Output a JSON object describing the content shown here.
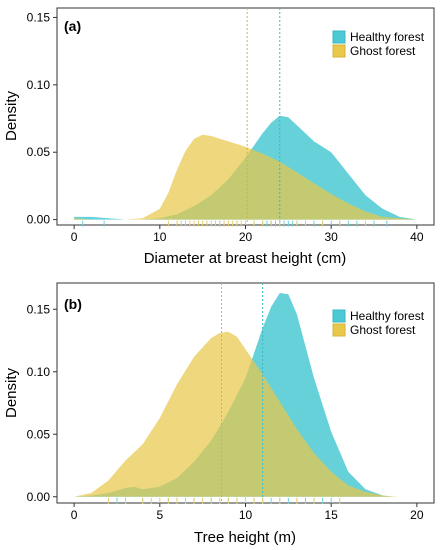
{
  "colors": {
    "healthy_fill": "#4cc9d4",
    "ghost_fill": "#e8c84a",
    "overlap_fill": "#a6c66a",
    "healthy_line": "#3ab8c4",
    "ghost_line": "#d6b43a",
    "rug_healthy": "#6fd2da",
    "rug_ghost": "#e6cf6e"
  },
  "chart_data": [
    {
      "type": "area",
      "panel_label": "(a)",
      "xlabel": "Diameter at breast height (cm)",
      "ylabel": "Density",
      "xlim": [
        -2,
        42
      ],
      "ylim": [
        -0.004,
        0.157
      ],
      "xticks": [
        0,
        10,
        20,
        30,
        40
      ],
      "yticks": [
        0.0,
        0.05,
        0.1,
        0.15
      ],
      "ytick_labels": [
        "0.00",
        "0.05",
        "0.10",
        "0.15"
      ],
      "grid": false,
      "legend_position": "top-right",
      "legend": [
        "Healthy forest",
        "Ghost forest"
      ],
      "series": [
        {
          "name": "Healthy forest",
          "x": [
            0,
            2,
            4,
            6,
            8,
            10,
            12,
            14,
            16,
            18,
            20,
            22,
            23,
            24,
            25,
            26,
            28,
            30,
            32,
            34,
            36,
            38,
            40
          ],
          "y": [
            0.002,
            0.002,
            0.001,
            0.0,
            0.0,
            0.001,
            0.004,
            0.01,
            0.018,
            0.03,
            0.046,
            0.064,
            0.072,
            0.077,
            0.076,
            0.07,
            0.058,
            0.05,
            0.034,
            0.018,
            0.008,
            0.002,
            0.0
          ],
          "mean": 24
        },
        {
          "name": "Ghost forest",
          "x": [
            0,
            2,
            4,
            6,
            8,
            10,
            11,
            12,
            13,
            14,
            15,
            16,
            17,
            18,
            20,
            22,
            24,
            26,
            28,
            30,
            32,
            34,
            36,
            38,
            40
          ],
          "y": [
            0.001,
            0.0,
            0.0,
            0.0,
            0.001,
            0.008,
            0.02,
            0.037,
            0.051,
            0.06,
            0.063,
            0.062,
            0.06,
            0.058,
            0.054,
            0.049,
            0.043,
            0.035,
            0.027,
            0.019,
            0.012,
            0.006,
            0.002,
            0.001,
            0.0
          ],
          "mean": 20.2
        }
      ],
      "rug": {
        "Healthy forest": [
          1,
          3.5,
          17,
          19,
          21,
          22,
          22.5,
          23,
          23.5,
          24,
          24.5,
          25,
          25.5,
          26,
          27,
          28,
          29,
          30,
          31,
          32,
          33,
          35,
          36.5
        ],
        "Ghost forest": [
          11,
          12,
          12.5,
          13,
          13.5,
          14,
          14.5,
          15,
          15.5,
          16,
          16.5,
          17,
          17.5,
          18,
          18.5,
          19,
          19.5,
          20,
          21,
          22,
          23,
          24,
          26,
          27,
          29,
          31,
          34
        ]
      }
    },
    {
      "type": "area",
      "panel_label": "(b)",
      "xlabel": "Tree height (m)",
      "ylabel": "Density",
      "xlim": [
        -1,
        21
      ],
      "ylim": [
        -0.005,
        0.171
      ],
      "xticks": [
        0,
        5,
        10,
        15,
        20
      ],
      "yticks": [
        0.0,
        0.05,
        0.1,
        0.15
      ],
      "ytick_labels": [
        "0.00",
        "0.05",
        "0.10",
        "0.15"
      ],
      "grid": false,
      "legend_position": "top-right",
      "legend": [
        "Healthy forest",
        "Ghost forest"
      ],
      "series": [
        {
          "name": "Healthy forest",
          "x": [
            0,
            1,
            2,
            2.5,
            3,
            3.5,
            4,
            5,
            6,
            7,
            8,
            9,
            10,
            10.5,
            11,
            11.5,
            12,
            12.5,
            13,
            14,
            15,
            16,
            17,
            18,
            18.5
          ],
          "y": [
            0.0,
            0.001,
            0.003,
            0.005,
            0.007,
            0.008,
            0.006,
            0.008,
            0.015,
            0.028,
            0.045,
            0.068,
            0.095,
            0.115,
            0.135,
            0.152,
            0.163,
            0.162,
            0.146,
            0.095,
            0.052,
            0.02,
            0.006,
            0.001,
            0.0
          ],
          "mean": 11
        },
        {
          "name": "Ghost forest",
          "x": [
            0,
            1,
            2,
            3,
            4,
            5,
            6,
            7,
            8,
            8.5,
            9,
            9.5,
            10,
            11,
            12,
            13,
            14,
            15,
            16,
            17,
            18,
            19,
            20
          ],
          "y": [
            0.0,
            0.003,
            0.013,
            0.029,
            0.042,
            0.063,
            0.09,
            0.112,
            0.127,
            0.131,
            0.132,
            0.128,
            0.118,
            0.098,
            0.076,
            0.054,
            0.035,
            0.02,
            0.009,
            0.004,
            0.001,
            0.0,
            0.0
          ],
          "mean": 8.6
        }
      ],
      "rug": {
        "Healthy forest": [
          2.5,
          3,
          4,
          5.5,
          6,
          7,
          8,
          9,
          9.5,
          10,
          10.5,
          11,
          11.5,
          12,
          12.5,
          13,
          13.5,
          14,
          14.5,
          15
        ],
        "Ghost forest": [
          2,
          3,
          4,
          4.5,
          5,
          5.5,
          6,
          6.5,
          7,
          7.5,
          8,
          8.5,
          9,
          9.5,
          10,
          10.5,
          11,
          12,
          13,
          14,
          15.5
        ]
      }
    }
  ]
}
